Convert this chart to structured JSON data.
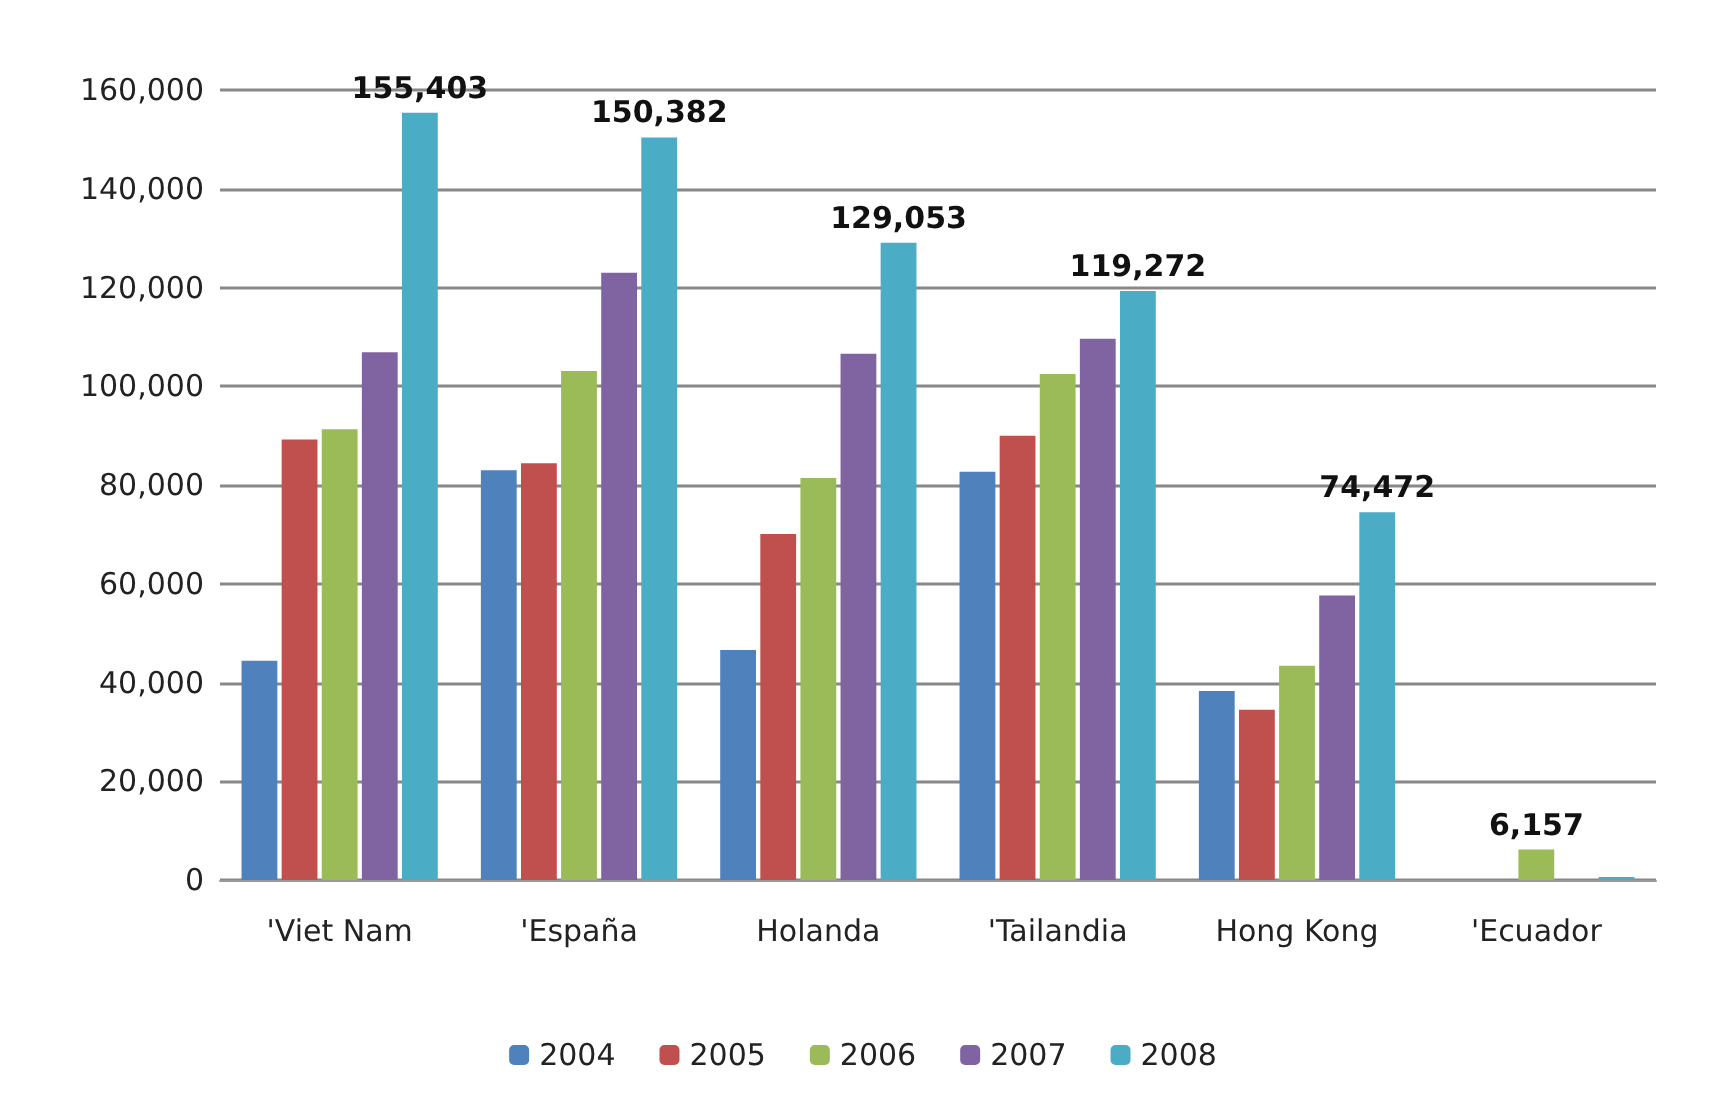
{
  "chart_data": {
    "type": "bar",
    "categories": [
      "'Viet Nam",
      "'España",
      "Holanda",
      "'Tailandia",
      "Hong Kong",
      "'Ecuador"
    ],
    "series": [
      {
        "name": "2004",
        "color": "#4f81bd",
        "values": [
          44400,
          83000,
          46600,
          82700,
          38300,
          null
        ],
        "value_labels": [
          null,
          null,
          null,
          null,
          null,
          null
        ]
      },
      {
        "name": "2005",
        "color": "#c0504d",
        "values": [
          89200,
          84400,
          70100,
          90000,
          34500,
          null
        ],
        "value_labels": [
          null,
          null,
          null,
          null,
          null,
          null
        ]
      },
      {
        "name": "2006",
        "color": "#9bbb59",
        "values": [
          91300,
          103100,
          81400,
          102500,
          43400,
          6157
        ],
        "value_labels": [
          null,
          null,
          null,
          null,
          null,
          "6,157"
        ]
      },
      {
        "name": "2007",
        "color": "#8064a2",
        "values": [
          106900,
          123000,
          106600,
          109600,
          57600,
          null
        ],
        "value_labels": [
          null,
          null,
          null,
          null,
          null,
          null
        ]
      },
      {
        "name": "2008",
        "color": "#4bacc6",
        "values": [
          155403,
          150382,
          129053,
          119272,
          74472,
          600
        ],
        "value_labels": [
          "155,403",
          "150,382",
          "129,053",
          "119,272",
          "74,472",
          null
        ]
      }
    ],
    "ylim": [
      0,
      160000
    ],
    "yticks": [
      {
        "value": 0,
        "label": "0"
      },
      {
        "value": 20000,
        "label": "20,000"
      },
      {
        "value": 40000,
        "label": "40,000"
      },
      {
        "value": 60000,
        "label": "60,000"
      },
      {
        "value": 80000,
        "label": "80,000"
      },
      {
        "value": 100000,
        "label": "100,000"
      },
      {
        "value": 120000,
        "label": "120,000"
      },
      {
        "value": 140000,
        "label": "140,000"
      },
      {
        "value": 160000,
        "label": "160,000"
      }
    ],
    "grid": "y",
    "legend": "bottom"
  }
}
